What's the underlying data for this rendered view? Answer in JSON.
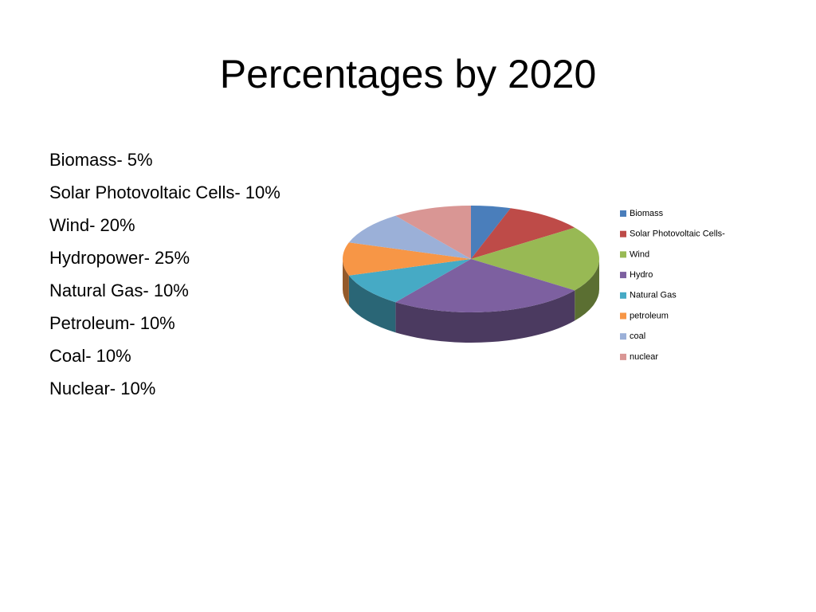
{
  "title": "Percentages by 2020",
  "list": [
    "Biomass- 5%",
    "Solar Photovoltaic Cells- 10%",
    "Wind- 20%",
    "Hydropower- 25%",
    "Natural Gas- 10%",
    "Petroleum- 10%",
    "Coal- 10%",
    "Nuclear- 10%"
  ],
  "chart_data": {
    "type": "pie",
    "categories": [
      "Biomass",
      "Solar Photovoltaic Cells-",
      "Wind",
      "Hydro",
      "Natural Gas",
      "petroleum",
      "coal",
      "nuclear"
    ],
    "values": [
      5,
      10,
      20,
      25,
      10,
      10,
      10,
      10
    ],
    "colors": [
      "#4a7ebb",
      "#be4b48",
      "#98b954",
      "#7d60a0",
      "#46aac5",
      "#f79646",
      "#9bb0d8",
      "#d99694"
    ],
    "legend": "right"
  }
}
